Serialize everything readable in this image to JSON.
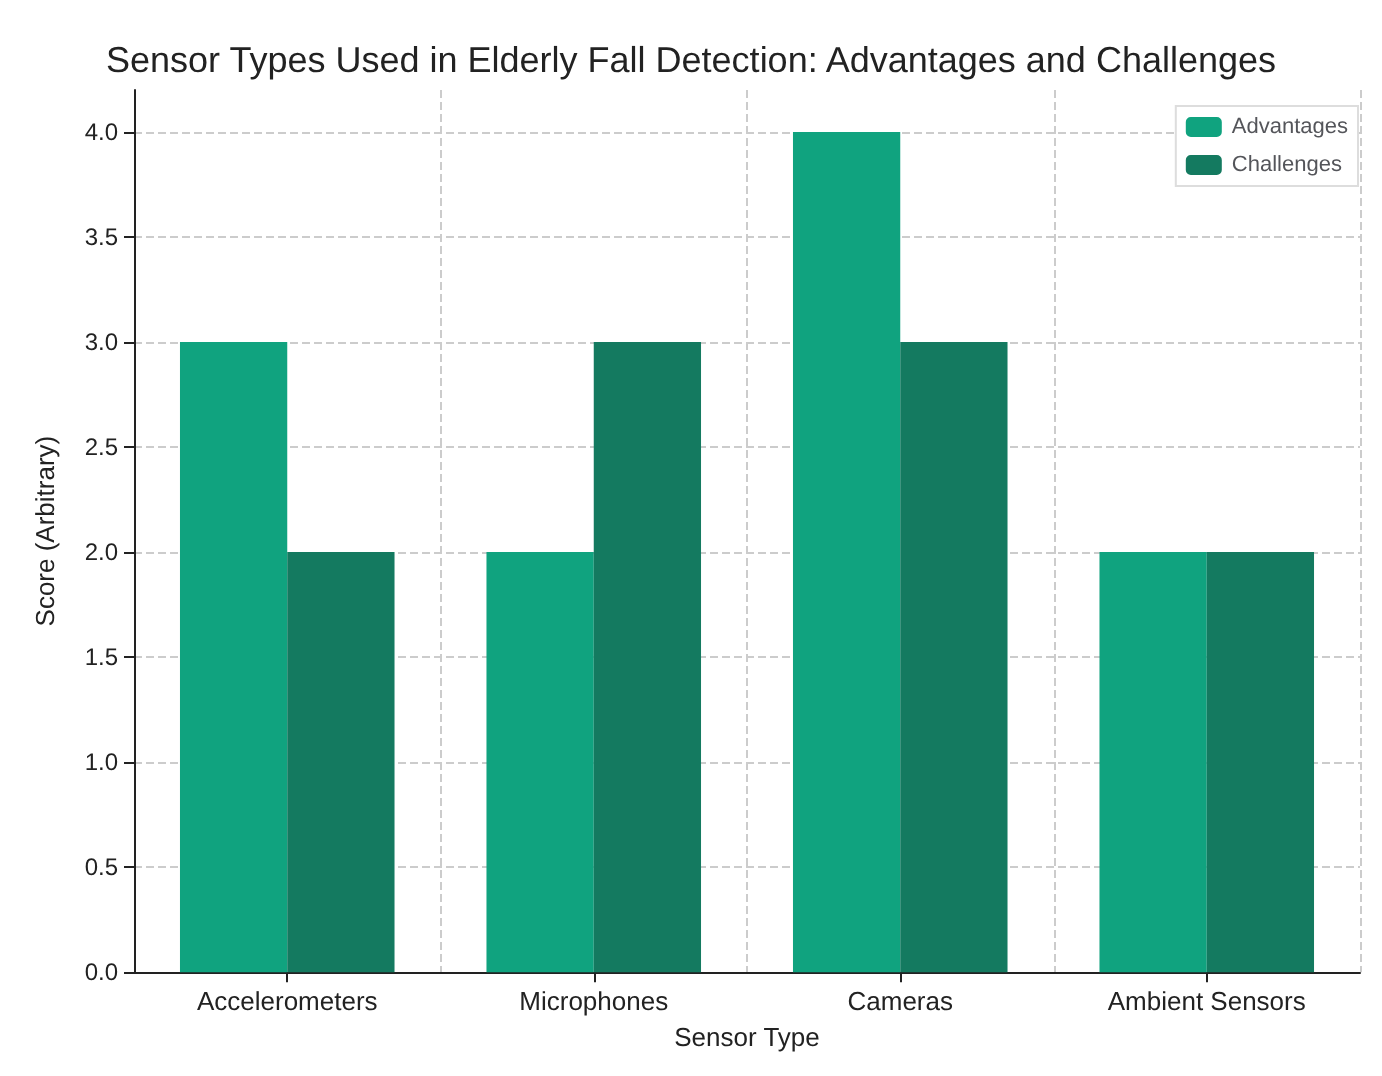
{
  "chart_data": {
    "type": "bar",
    "title": "Sensor Types Used in Elderly Fall Detection: Advantages and Challenges",
    "xlabel": "Sensor Type",
    "ylabel": "Score (Arbitrary)",
    "categories": [
      "Accelerometers",
      "Microphones",
      "Cameras",
      "Ambient Sensors"
    ],
    "series": [
      {
        "name": "Advantages",
        "color": "#10a37f",
        "values": [
          3,
          2,
          4,
          2
        ]
      },
      {
        "name": "Challenges",
        "color": "#147a60",
        "values": [
          2,
          3,
          3,
          2
        ]
      }
    ],
    "ylim": [
      0,
      4.2
    ],
    "yticks": [
      {
        "value": 0,
        "label": "0.0"
      },
      {
        "value": 0.5,
        "label": "0.5"
      },
      {
        "value": 1,
        "label": "1.0"
      },
      {
        "value": 1.5,
        "label": "1.5"
      },
      {
        "value": 2,
        "label": "2.0"
      },
      {
        "value": 2.5,
        "label": "2.5"
      },
      {
        "value": 3,
        "label": "3.0"
      },
      {
        "value": 3.5,
        "label": "3.5"
      },
      {
        "value": 4,
        "label": "4.0"
      }
    ],
    "grid": true,
    "legend": "top right"
  }
}
